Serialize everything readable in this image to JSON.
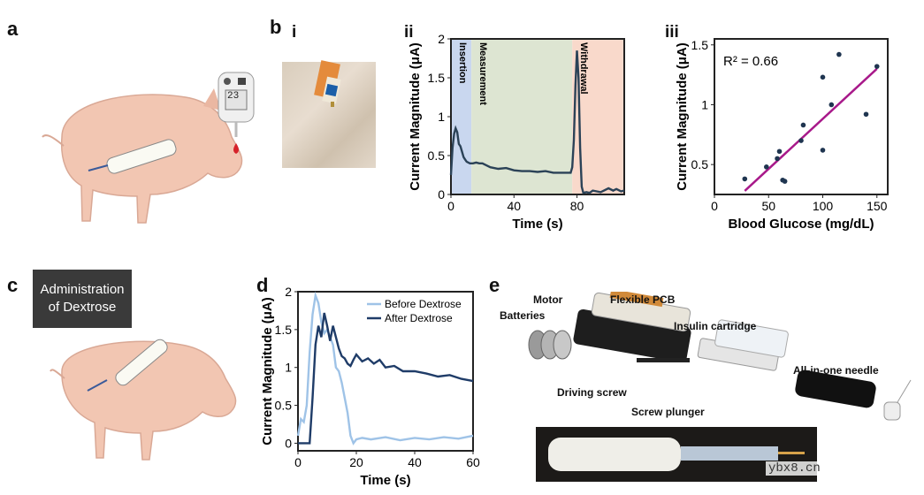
{
  "panels": {
    "a": "a",
    "b": "b",
    "b_i": "i",
    "b_ii": "ii",
    "b_iii": "iii",
    "c": "c",
    "d": "d",
    "e": "e"
  },
  "meter_display": "23",
  "dextrose_box": {
    "line1": "Administration",
    "line2": "of Dextrose"
  },
  "chart_data": [
    {
      "id": "b-ii",
      "type": "line",
      "xlabel": "Time (s)",
      "ylabel": "Current Magnitude (μA)",
      "xlim": [
        0,
        110
      ],
      "ylim": [
        0,
        2
      ],
      "xticks": [
        "0",
        "40",
        "80"
      ],
      "yticks": [
        "0",
        "0.5",
        "1",
        "1.5",
        "2"
      ],
      "regions": [
        {
          "label": "Insertion",
          "x0": 0,
          "x1": 13,
          "color": "#c9d7ef"
        },
        {
          "label": "Measurement",
          "x0": 13,
          "x1": 77,
          "color": "#dde5d2"
        },
        {
          "label": "Withdrawal",
          "x0": 77,
          "x1": 110,
          "color": "#f9d9cb"
        }
      ],
      "series": [
        {
          "color": "#2b4257",
          "x": [
            0,
            1,
            2,
            3,
            4,
            5,
            6,
            7,
            8,
            9,
            10,
            12,
            14,
            16,
            18,
            20,
            25,
            30,
            35,
            40,
            45,
            50,
            55,
            60,
            65,
            70,
            74,
            76,
            77,
            78,
            79,
            80,
            81,
            82,
            83,
            84,
            86,
            88,
            90,
            95,
            100,
            103,
            105,
            108,
            110
          ],
          "y": [
            0.25,
            0.6,
            0.78,
            0.85,
            0.8,
            0.65,
            0.62,
            0.55,
            0.48,
            0.45,
            0.42,
            0.4,
            0.4,
            0.41,
            0.4,
            0.4,
            0.35,
            0.33,
            0.34,
            0.31,
            0.3,
            0.3,
            0.29,
            0.3,
            0.28,
            0.28,
            0.28,
            0.28,
            0.35,
            0.7,
            1.4,
            1.85,
            1.5,
            0.6,
            0.1,
            0.02,
            0.03,
            0.02,
            0.05,
            0.03,
            0.08,
            0.05,
            0.07,
            0.04,
            0.05
          ]
        }
      ]
    },
    {
      "id": "b-iii",
      "type": "scatter",
      "xlabel": "Blood Glucose (mg/dL)",
      "ylabel": "Current Magnitude (μA)",
      "xlim": [
        0,
        160
      ],
      "ylim": [
        0.25,
        1.55
      ],
      "xticks": [
        "0",
        "50",
        "100",
        "150"
      ],
      "yticks": [
        "0.5",
        "1",
        "1.5"
      ],
      "annotation": "R² = 0.66",
      "points_x": [
        28,
        48,
        58,
        60,
        63,
        65,
        80,
        82,
        100,
        100,
        108,
        115,
        140,
        150
      ],
      "points_y": [
        0.38,
        0.48,
        0.55,
        0.61,
        0.37,
        0.36,
        0.7,
        0.83,
        0.62,
        1.23,
        1.0,
        1.42,
        0.92,
        1.32
      ],
      "fit": {
        "x": [
          28,
          150
        ],
        "y": [
          0.28,
          1.3
        ],
        "color": "#a8198a"
      },
      "point_color": "#1f3550"
    },
    {
      "id": "d",
      "type": "line",
      "xlabel": "Time (s)",
      "ylabel": "Current Magnitude (μA)",
      "xlim": [
        0,
        60
      ],
      "ylim": [
        -0.1,
        2
      ],
      "xticks": [
        "0",
        "20",
        "40",
        "60"
      ],
      "yticks": [
        "0",
        "0.5",
        "1",
        "1.5",
        "2"
      ],
      "series": [
        {
          "name": "Before Dextrose",
          "color": "#9fc3e7",
          "x": [
            0,
            1,
            2,
            3,
            4,
            5,
            6,
            7,
            8,
            9,
            10,
            11,
            12,
            13,
            14,
            15,
            16,
            17,
            18,
            19,
            20,
            22,
            25,
            30,
            35,
            40,
            45,
            50,
            55,
            60
          ],
          "y": [
            0.1,
            0.32,
            0.28,
            0.5,
            1.2,
            1.7,
            1.95,
            1.85,
            1.6,
            1.45,
            1.5,
            1.4,
            1.3,
            1.0,
            0.95,
            0.8,
            0.6,
            0.4,
            0.1,
            0.0,
            0.05,
            0.07,
            0.05,
            0.08,
            0.04,
            0.07,
            0.05,
            0.08,
            0.06,
            0.1
          ]
        },
        {
          "name": "After Dextrose",
          "color": "#1f3c68",
          "x": [
            0,
            2,
            4,
            5,
            6,
            7,
            8,
            9,
            10,
            11,
            12,
            13,
            14,
            15,
            16,
            17,
            18,
            19,
            20,
            22,
            24,
            26,
            28,
            30,
            33,
            36,
            40,
            44,
            48,
            52,
            56,
            60
          ],
          "y": [
            0.0,
            0.0,
            0.0,
            0.6,
            1.3,
            1.55,
            1.4,
            1.72,
            1.55,
            1.35,
            1.55,
            1.4,
            1.25,
            1.15,
            1.12,
            1.05,
            1.02,
            1.1,
            1.17,
            1.08,
            1.12,
            1.05,
            1.1,
            1.0,
            1.02,
            0.95,
            0.95,
            0.92,
            0.88,
            0.9,
            0.85,
            0.82
          ]
        }
      ],
      "legend": "top-right"
    }
  ],
  "device_labels": {
    "motor": "Motor",
    "flexible_pcb": "Flexible PCB",
    "batteries": "Batteries",
    "insulin_cartridge": "Insulin cartridge",
    "all_in_one_needle": "All-in-one needle",
    "driving_screw": "Driving screw",
    "screw_plunger": "Screw plunger"
  },
  "watermark": "ybx8.cn"
}
